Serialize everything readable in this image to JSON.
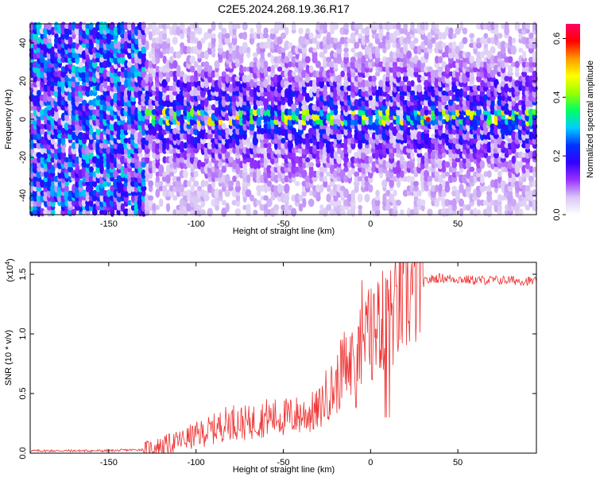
{
  "title": "C2E5.2024.268.19.36.R17",
  "chart_data": [
    {
      "type": "heatmap",
      "xlabel": "Height of straight line (km)",
      "ylabel": "Frequency (Hz)",
      "xlim": [
        -195,
        95
      ],
      "ylim": [
        -50,
        50
      ],
      "xticks": [
        "-150",
        "-100",
        "-50",
        "0",
        "50"
      ],
      "xtick_values": [
        -150,
        -100,
        -50,
        0,
        50
      ],
      "yticks": [
        "40",
        "20",
        "0",
        "-20",
        "-40"
      ],
      "ytick_values": [
        40,
        20,
        0,
        -20,
        -40
      ],
      "colorbar": {
        "label": "Normalized spectral amplitude",
        "range": [
          0,
          0.65
        ],
        "ticks": [
          "0.0",
          "0.2",
          "0.4",
          "0.6"
        ],
        "tick_values": [
          0.0,
          0.2,
          0.4,
          0.6
        ],
        "colors": [
          "#ffffff",
          "#d9c6f5",
          "#9933ff",
          "#3300ff",
          "#0033ff",
          "#00ccff",
          "#00ff66",
          "#99ff00",
          "#ffff00",
          "#ff9900",
          "#ff0000",
          "#ff0066"
        ]
      },
      "description_values": {
        "noise_region_x": [
          -195,
          -130
        ],
        "signal_band_center_hz": 0,
        "signal_peak_x": 33,
        "signal_peak_amplitude": 0.6
      }
    },
    {
      "type": "line",
      "xlabel": "Height of straight line (km)",
      "ylabel": "SNR (10 * v/v)",
      "multiplier_label": "(x10",
      "multiplier_exp": "4",
      "multiplier_close": ")",
      "xlim": [
        -195,
        95
      ],
      "ylim": [
        0,
        1.6
      ],
      "xticks": [
        "-150",
        "-100",
        "-50",
        "0",
        "50"
      ],
      "xtick_values": [
        -150,
        -100,
        -50,
        0,
        50
      ],
      "yticks": [
        "0.0",
        "0.5",
        "1.0",
        "1.5"
      ],
      "ytick_values": [
        0.0,
        0.5,
        1.0,
        1.5
      ],
      "series": [
        {
          "color": "#ee3333",
          "trend_x": [
            -195,
            -150,
            -130,
            -120,
            -110,
            -100,
            -90,
            -80,
            -70,
            -60,
            -50,
            -40,
            -30,
            -25,
            -20,
            -15,
            -12,
            -10,
            -5,
            0,
            5,
            10,
            15,
            20,
            25,
            30,
            35,
            40,
            50,
            60,
            70,
            80,
            95
          ],
          "trend_y": [
            0.02,
            0.02,
            0.03,
            0.06,
            0.1,
            0.15,
            0.2,
            0.27,
            0.25,
            0.3,
            0.3,
            0.32,
            0.35,
            0.5,
            0.55,
            0.75,
            0.7,
            0.85,
            0.95,
            1.0,
            1.1,
            1.1,
            1.2,
            1.3,
            1.38,
            1.43,
            1.46,
            1.47,
            1.46,
            1.45,
            1.45,
            1.45,
            1.44
          ]
        }
      ]
    }
  ]
}
